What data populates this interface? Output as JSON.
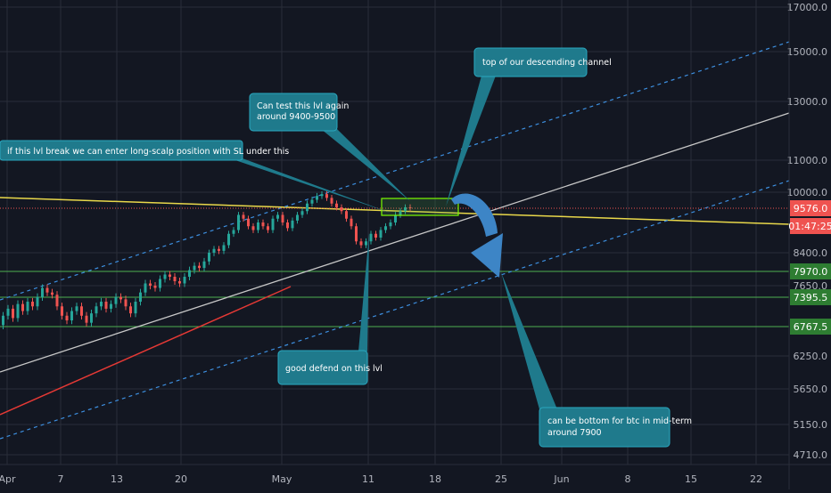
{
  "chart_data": {
    "type": "candlestick",
    "x_ticks": [
      "Apr",
      "7",
      "13",
      "20",
      "May",
      "11",
      "18",
      "25",
      "Jun",
      "8",
      "15",
      "22"
    ],
    "y_ticks": [
      "17000.0",
      "15000.0",
      "13000.0",
      "11000.0",
      "10000.0",
      "8400.0",
      "7650.0",
      "6250.0",
      "5650.0",
      "5150.0",
      "4710.0"
    ],
    "price_badges": [
      {
        "value": "9576.0",
        "color": "#ef5350"
      },
      {
        "value": "01:47:25",
        "color": "#ef5350"
      },
      {
        "value": "7970.0",
        "color": "#2e7d32"
      },
      {
        "value": "7395.5",
        "color": "#2e7d32"
      },
      {
        "value": "6767.5",
        "color": "#2e7d32"
      }
    ],
    "horizontal_levels": [
      7970.0,
      7395.5,
      6767.5
    ],
    "last_price": 9576.0,
    "annotations": [
      {
        "id": "test-level",
        "text": [
          "Can test this lvl again",
          "around 9400-9500"
        ]
      },
      {
        "id": "long-scalp",
        "text": [
          "if this lvl break we can enter long-scalp position with SL under this"
        ]
      },
      {
        "id": "channel-top",
        "text": [
          "top of our descending channel"
        ]
      },
      {
        "id": "good-defend",
        "text": [
          "good defend on this lvl"
        ]
      },
      {
        "id": "bottom-mid-term",
        "text": [
          "can be bottom for btc in mid-term",
          "around 7900"
        ]
      }
    ],
    "colors": {
      "background": "#131722",
      "grid": "#2a2e39",
      "up_candle": "#26a69a",
      "down_candle": "#ef5350",
      "yellow_line": "#e9d84a",
      "white_line": "#c8c8c8",
      "red_trend": "#e53935",
      "channel_dashed": "#3d8fe0",
      "level_green": "#4caf50",
      "callout": "#1f7a8c",
      "arrow": "#3d85c6"
    }
  }
}
